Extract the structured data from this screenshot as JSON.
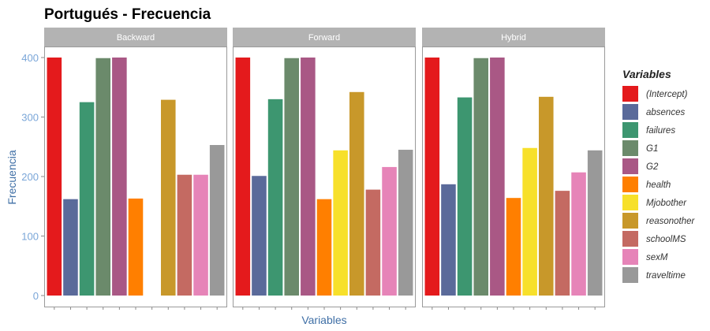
{
  "chart_data": {
    "type": "bar",
    "title": "Portugués - Frecuencia",
    "xlabel": "Variables",
    "ylabel": "Frecuencia",
    "ylim": [
      0,
      440
    ],
    "yticks": [
      0,
      100,
      200,
      300,
      400
    ],
    "grid": false,
    "legend_title": "Variables",
    "legend_position": "right",
    "categories": [
      "(Intercept)",
      "absences",
      "failures",
      "G1",
      "G2",
      "health",
      "Mjobother",
      "reasonother",
      "schoolMS",
      "sexM",
      "traveltime"
    ],
    "colors": [
      "#e41a1c",
      "#5a6a9a",
      "#3d9670",
      "#6b8a6b",
      "#a95885",
      "#ff7f00",
      "#f7e02a",
      "#c8982a",
      "#c46a62",
      "#e684b8",
      "#999999"
    ],
    "panels": [
      {
        "name": "Backward",
        "values": [
          400,
          162,
          325,
          399,
          400,
          163,
          0,
          329,
          203,
          203,
          253
        ]
      },
      {
        "name": "Forward",
        "values": [
          400,
          201,
          330,
          399,
          400,
          162,
          244,
          342,
          178,
          216,
          245
        ]
      },
      {
        "name": "Hybrid",
        "values": [
          400,
          187,
          333,
          399,
          400,
          164,
          248,
          334,
          176,
          207,
          244
        ]
      }
    ]
  }
}
